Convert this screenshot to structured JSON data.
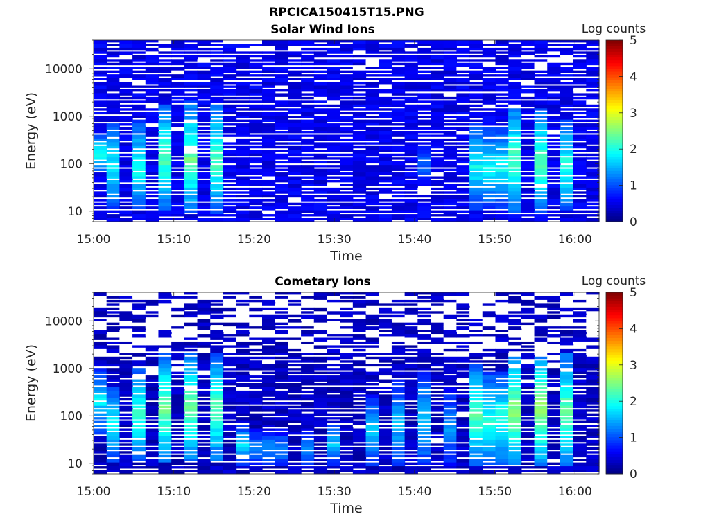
{
  "figure": {
    "title": "RPCICA150415T15.PNG"
  },
  "chart_data": [
    {
      "type": "heatmap",
      "title": "Solar Wind Ions",
      "xlabel": "Time",
      "ylabel": "Energy (eV)",
      "x_ticks": [
        "15:00",
        "15:10",
        "15:20",
        "15:30",
        "15:40",
        "15:50",
        "16:00"
      ],
      "x_range": [
        "15:00",
        "16:03"
      ],
      "y_scale": "log",
      "y_ticks": [
        10,
        100,
        1000,
        10000
      ],
      "y_range": [
        6,
        40000
      ],
      "colorbar": {
        "label": "Log counts",
        "range": [
          0,
          5
        ],
        "ticks": [
          0,
          1,
          2,
          3,
          4,
          5
        ],
        "colormap": "jet"
      },
      "background_value": 0.35,
      "saturated_color": "#ffffff",
      "bursts": [
        {
          "time": "15:00",
          "e_low": 60,
          "e_high": 400,
          "peak": 2.1
        },
        {
          "time": "15:03",
          "e_low": 10,
          "e_high": 700,
          "peak": 1.9
        },
        {
          "time": "15:06",
          "e_low": 10,
          "e_high": 800,
          "peak": 2.0
        },
        {
          "time": "15:09",
          "e_low": 10,
          "e_high": 1800,
          "peak": 2.3
        },
        {
          "time": "15:12",
          "e_low": 8,
          "e_high": 2000,
          "peak": 2.4
        },
        {
          "time": "15:15",
          "e_low": 8,
          "e_high": 1800,
          "peak": 2.3
        },
        {
          "time": "15:41",
          "e_low": 20,
          "e_high": 400,
          "peak": 1.1
        },
        {
          "time": "15:47",
          "e_low": 10,
          "e_high": 700,
          "peak": 1.9
        },
        {
          "time": "15:50",
          "e_low": 10,
          "e_high": 600,
          "peak": 1.9
        },
        {
          "time": "15:53",
          "e_low": 8,
          "e_high": 1800,
          "peak": 2.3
        },
        {
          "time": "15:56",
          "e_low": 8,
          "e_high": 1500,
          "peak": 2.3
        },
        {
          "time": "15:59",
          "e_low": 10,
          "e_high": 800,
          "peak": 2.1
        }
      ]
    },
    {
      "type": "heatmap",
      "title": "Cometary Ions",
      "xlabel": "Time",
      "ylabel": "Energy (eV)",
      "x_ticks": [
        "15:00",
        "15:10",
        "15:20",
        "15:30",
        "15:40",
        "15:50",
        "16:00"
      ],
      "x_range": [
        "15:00",
        "16:03"
      ],
      "y_scale": "log",
      "y_ticks": [
        10,
        100,
        1000,
        10000
      ],
      "y_range": [
        6,
        40000
      ],
      "colorbar": {
        "label": "Log counts",
        "range": [
          0,
          5
        ],
        "ticks": [
          0,
          1,
          2,
          3,
          4,
          5
        ],
        "colormap": "jet"
      },
      "background_value": 0.15,
      "saturated_color": "#ffffff",
      "bursts": [
        {
          "time": "15:00",
          "e_low": 40,
          "e_high": 1000,
          "peak": 1.8
        },
        {
          "time": "15:03",
          "e_low": 10,
          "e_high": 400,
          "peak": 1.9
        },
        {
          "time": "15:06",
          "e_low": 10,
          "e_high": 1000,
          "peak": 2.2
        },
        {
          "time": "15:09",
          "e_low": 10,
          "e_high": 2000,
          "peak": 2.5
        },
        {
          "time": "15:12",
          "e_low": 10,
          "e_high": 2000,
          "peak": 2.5
        },
        {
          "time": "15:15",
          "e_low": 10,
          "e_high": 2000,
          "peak": 2.3
        },
        {
          "time": "15:18",
          "e_low": 8,
          "e_high": 70,
          "peak": 1.7
        },
        {
          "time": "15:21",
          "e_low": 8,
          "e_high": 50,
          "peak": 1.4
        },
        {
          "time": "15:24",
          "e_low": 8,
          "e_high": 50,
          "peak": 1.3
        },
        {
          "time": "15:27",
          "e_low": 8,
          "e_high": 50,
          "peak": 1.4
        },
        {
          "time": "15:30",
          "e_low": 8,
          "e_high": 70,
          "peak": 1.6
        },
        {
          "time": "15:35",
          "e_low": 8,
          "e_high": 300,
          "peak": 1.6
        },
        {
          "time": "15:38",
          "e_low": 8,
          "e_high": 600,
          "peak": 1.6
        },
        {
          "time": "15:41",
          "e_low": 8,
          "e_high": 800,
          "peak": 1.7
        },
        {
          "time": "15:44",
          "e_low": 8,
          "e_high": 400,
          "peak": 1.4
        },
        {
          "time": "15:47",
          "e_low": 8,
          "e_high": 1200,
          "peak": 2.3
        },
        {
          "time": "15:50",
          "e_low": 8,
          "e_high": 800,
          "peak": 2.1
        },
        {
          "time": "15:53",
          "e_low": 8,
          "e_high": 2000,
          "peak": 2.6
        },
        {
          "time": "15:56",
          "e_low": 8,
          "e_high": 2000,
          "peak": 2.7
        },
        {
          "time": "15:59",
          "e_low": 8,
          "e_high": 2000,
          "peak": 2.4
        }
      ]
    }
  ]
}
